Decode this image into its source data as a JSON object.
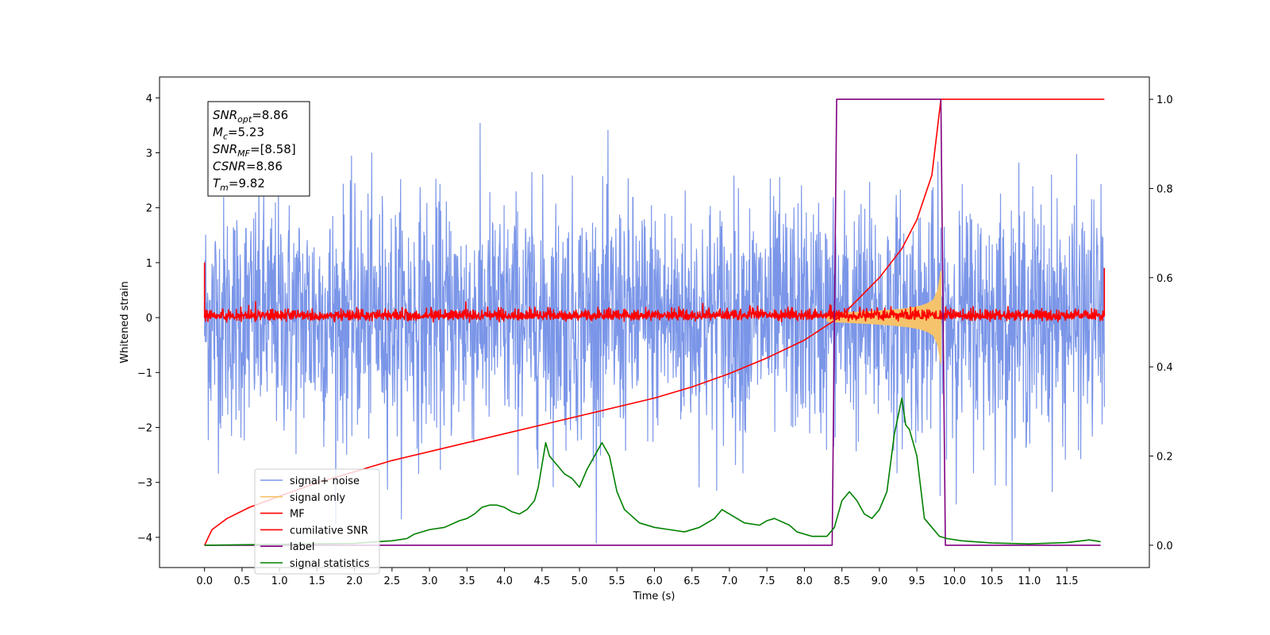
{
  "chart_data": {
    "type": "line",
    "title": "",
    "xlabel": "Time (s)",
    "ylabel": "Whitened strain",
    "xlim": [
      -0.6,
      12.6
    ],
    "ylim": [
      -4.55,
      4.38
    ],
    "y2lim": [
      -0.05,
      1.05
    ],
    "xticks": [
      0.0,
      0.5,
      1.0,
      1.5,
      2.0,
      2.5,
      3.0,
      3.5,
      4.0,
      4.5,
      5.0,
      5.5,
      6.0,
      6.5,
      7.0,
      7.5,
      8.0,
      8.5,
      9.0,
      9.5,
      10.0,
      10.5,
      11.0,
      11.5
    ],
    "xtick_labels": [
      "0.0",
      "0.5",
      "1.0",
      "1.5",
      "2.0",
      "2.5",
      "3.0",
      "3.5",
      "4.0",
      "4.5",
      "5.0",
      "5.5",
      "6.0",
      "6.5",
      "7.0",
      "7.5",
      "8.0",
      "8.5",
      "9.0",
      "9.5",
      "10.0",
      "10.5",
      "11.0",
      "11.5"
    ],
    "yticks": [
      4,
      3,
      2,
      1,
      0,
      -1,
      -2,
      -3,
      -4
    ],
    "ytick_labels": [
      "4",
      "3",
      "2",
      "1",
      "0",
      "−1",
      "−2",
      "−3",
      "−4"
    ],
    "y2ticks": [
      1.0,
      0.8,
      0.6,
      0.4,
      0.2,
      0.0
    ],
    "y2tick_labels": [
      "1.0",
      "0.8",
      "0.6",
      "0.4",
      "0.2",
      "0.0"
    ],
    "grid": false,
    "legend_position": "lower-left",
    "legend": [
      {
        "label": "signal+ noise",
        "color": "#7b96e8"
      },
      {
        "label": "signal only",
        "color": "#f5c36b"
      },
      {
        "label": "MF",
        "color": "#ff0000"
      },
      {
        "label": "cumilative SNR",
        "color": "#ff0000"
      },
      {
        "label": "label",
        "color": "#800080"
      },
      {
        "label": "signal statistics",
        "color": "#008000"
      }
    ],
    "stats_box": [
      {
        "name": "SNR",
        "sub": "opt",
        "value": "=8.86"
      },
      {
        "name": "M",
        "sub": "c",
        "value": "=5.23"
      },
      {
        "name": "SNR",
        "sub": "MF",
        "value": "=[8.58]"
      },
      {
        "name": "CSNR",
        "sub": "",
        "value": "=8.86"
      },
      {
        "name": "T",
        "sub": "m",
        "value": "=9.82"
      }
    ],
    "series": [
      {
        "name": "signal+ noise",
        "color": "#7b96e8",
        "axis": "left",
        "x_range": [
          0.0,
          12.0
        ],
        "y_range_approx": [
          -4.1,
          4.0
        ],
        "note": "dense noise"
      },
      {
        "name": "signal only",
        "color": "#f5c36b",
        "axis": "left",
        "x": [
          8.3,
          8.6,
          8.9,
          9.2,
          9.4,
          9.55,
          9.65,
          9.72,
          9.78,
          9.82
        ],
        "envelope": [
          0.07,
          0.09,
          0.11,
          0.14,
          0.17,
          0.21,
          0.26,
          0.32,
          0.5,
          0.85
        ]
      },
      {
        "name": "MF",
        "color": "#ff0000",
        "axis": "left",
        "x_range": [
          0.0,
          12.0
        ],
        "y_range_approx": [
          -0.15,
          0.55
        ]
      },
      {
        "name": "cumilative SNR",
        "color": "#ff0000",
        "axis": "right",
        "x": [
          0.0,
          0.1,
          0.3,
          0.6,
          1.0,
          1.5,
          2.0,
          2.5,
          3.0,
          3.5,
          4.0,
          4.5,
          5.0,
          5.5,
          6.0,
          6.5,
          7.0,
          7.5,
          8.0,
          8.5,
          9.0,
          9.3,
          9.5,
          9.7,
          9.82,
          12.0
        ],
        "y": [
          0.0,
          0.035,
          0.06,
          0.085,
          0.11,
          0.14,
          0.165,
          0.19,
          0.21,
          0.23,
          0.25,
          0.27,
          0.29,
          0.31,
          0.33,
          0.355,
          0.385,
          0.42,
          0.46,
          0.515,
          0.6,
          0.665,
          0.73,
          0.83,
          1.0,
          1.0
        ]
      },
      {
        "name": "label",
        "color": "#800080",
        "axis": "right",
        "x": [
          0.0,
          8.37,
          8.43,
          9.82,
          9.88,
          11.95
        ],
        "y": [
          0.0,
          0.0,
          1.0,
          1.0,
          0.0,
          0.0
        ]
      },
      {
        "name": "signal statistics",
        "color": "#008000",
        "axis": "right",
        "x": [
          0.0,
          0.5,
          1.0,
          1.5,
          2.0,
          2.3,
          2.5,
          2.7,
          2.8,
          3.0,
          3.2,
          3.4,
          3.5,
          3.6,
          3.7,
          3.8,
          3.9,
          4.0,
          4.1,
          4.2,
          4.3,
          4.4,
          4.45,
          4.5,
          4.55,
          4.6,
          4.7,
          4.8,
          4.9,
          5.0,
          5.1,
          5.2,
          5.3,
          5.4,
          5.5,
          5.6,
          5.8,
          6.0,
          6.2,
          6.4,
          6.6,
          6.8,
          6.9,
          7.0,
          7.2,
          7.4,
          7.5,
          7.6,
          7.8,
          7.9,
          8.1,
          8.3,
          8.4,
          8.5,
          8.6,
          8.7,
          8.8,
          8.9,
          9.0,
          9.1,
          9.2,
          9.3,
          9.35,
          9.4,
          9.5,
          9.6,
          9.7,
          9.8,
          9.9,
          10.1,
          10.5,
          11.0,
          11.5,
          11.8,
          11.95
        ],
        "y": [
          0.0,
          0.001,
          0.002,
          0.003,
          0.004,
          0.008,
          0.01,
          0.015,
          0.025,
          0.035,
          0.04,
          0.055,
          0.06,
          0.07,
          0.085,
          0.09,
          0.09,
          0.085,
          0.075,
          0.07,
          0.08,
          0.1,
          0.13,
          0.18,
          0.23,
          0.2,
          0.18,
          0.16,
          0.15,
          0.13,
          0.17,
          0.2,
          0.23,
          0.2,
          0.12,
          0.08,
          0.05,
          0.04,
          0.035,
          0.03,
          0.04,
          0.06,
          0.08,
          0.07,
          0.05,
          0.045,
          0.055,
          0.06,
          0.045,
          0.03,
          0.02,
          0.02,
          0.04,
          0.1,
          0.12,
          0.1,
          0.07,
          0.06,
          0.08,
          0.12,
          0.25,
          0.33,
          0.27,
          0.26,
          0.2,
          0.06,
          0.04,
          0.02,
          0.015,
          0.01,
          0.005,
          0.003,
          0.006,
          0.012,
          0.008
        ]
      }
    ]
  }
}
